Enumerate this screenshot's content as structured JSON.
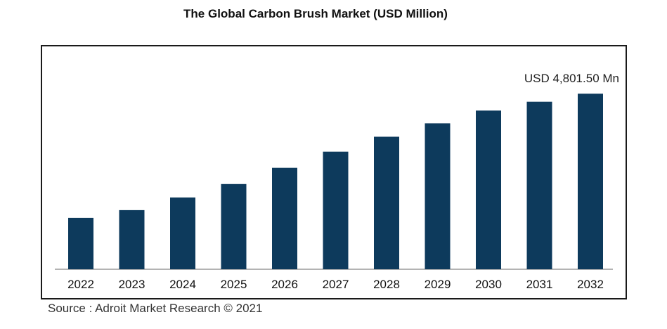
{
  "chart_data": {
    "type": "bar",
    "title": "The Global Carbon Brush Market (USD Million)",
    "categories": [
      "2022",
      "2023",
      "2024",
      "2025",
      "2026",
      "2027",
      "2028",
      "2029",
      "2030",
      "2031",
      "2032"
    ],
    "values": [
      1917,
      2204,
      2678,
      3178,
      3783,
      4387,
      4942,
      5444,
      5916,
      6248,
      6547
    ],
    "value_unit": "relative bar height (estimated; axis unlabeled)",
    "annotation": "USD 4,801.50 Mn",
    "xlabel": "",
    "ylabel": "",
    "ylim": [
      0,
      7000
    ],
    "grid": false,
    "legend": "none",
    "bar_color": "#0d3a5c",
    "source": "Source : Adroit Market Research © 2021"
  }
}
